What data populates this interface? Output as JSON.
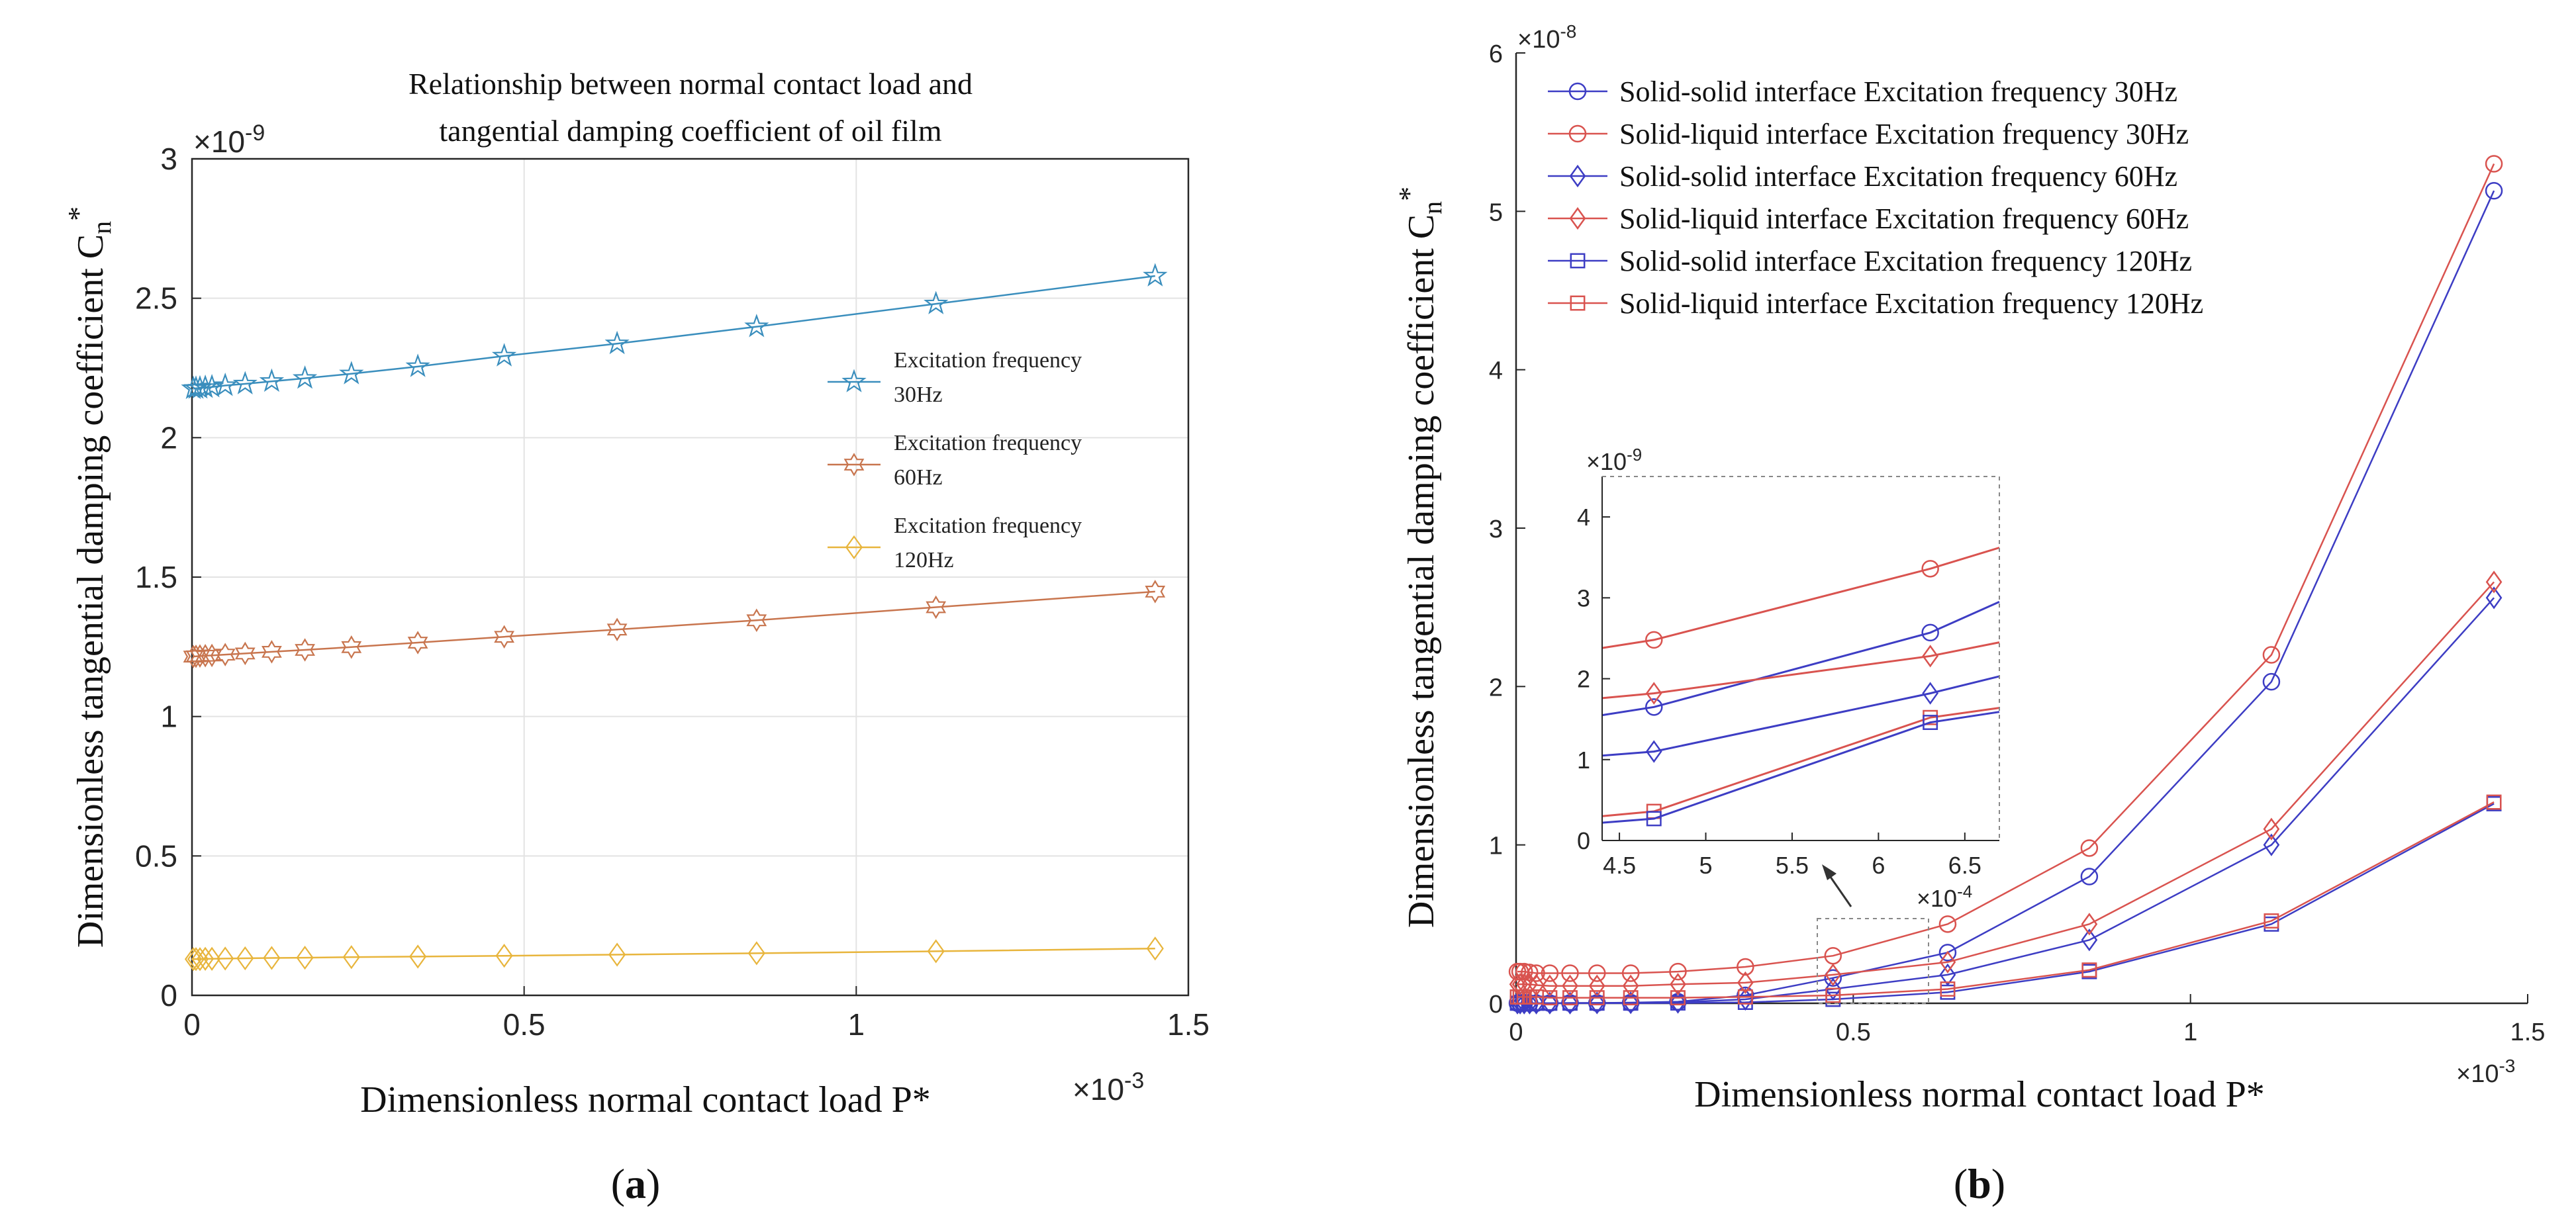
{
  "chart_data": [
    {
      "type": "line",
      "panel_label": "(a)",
      "title": "Relationship between normal contact load and tangential damping coefficient of oil film",
      "title_lines": [
        "Relationship between normal contact load and",
        "tangential damping coefficient of oil film"
      ],
      "xlabel": "Dimensionless normal contact load P*",
      "ylabel_main": "Dimensionless tangential damping coefficient C",
      "ylabel_sub": "n",
      "ylabel_sup": "*",
      "x_multiplier": "×10",
      "x_multiplier_exp": "-3",
      "y_multiplier": "×10",
      "y_multiplier_exp": "-9",
      "xlim": [
        0,
        1.5
      ],
      "ylim": [
        0,
        3
      ],
      "x_ticks": [
        0,
        0.5,
        1,
        1.5
      ],
      "y_ticks": [
        0,
        0.5,
        1,
        1.5,
        2,
        2.5,
        3
      ],
      "x_tick_labels": [
        "0",
        "0.5",
        "1",
        "1.5"
      ],
      "y_tick_labels": [
        "0",
        "0.5",
        "1",
        "1.5",
        "2",
        "2.5",
        "3"
      ],
      "grid": true,
      "legend_position": "right",
      "x": [
        0.002,
        0.006,
        0.012,
        0.02,
        0.03,
        0.05,
        0.08,
        0.12,
        0.17,
        0.24,
        0.34,
        0.47,
        0.64,
        0.85,
        1.12,
        1.45
      ],
      "series": [
        {
          "name": "Excitation frequency 30Hz",
          "legend_lines": [
            "Excitation     frequency",
            "30Hz"
          ],
          "color": "#3a8ebd",
          "marker": "star",
          "values": [
            2.176,
            2.177,
            2.178,
            2.18,
            2.182,
            2.187,
            2.193,
            2.202,
            2.213,
            2.229,
            2.255,
            2.293,
            2.337,
            2.398,
            2.48,
            2.58
          ]
        },
        {
          "name": "Excitation frequency 60Hz",
          "legend_lines": [
            "Excitation     frequency",
            "60Hz"
          ],
          "color": "#c8754e",
          "marker": "hexagram",
          "values": [
            1.215,
            1.216,
            1.217,
            1.218,
            1.219,
            1.222,
            1.226,
            1.232,
            1.239,
            1.249,
            1.265,
            1.286,
            1.312,
            1.345,
            1.392,
            1.448
          ]
        },
        {
          "name": "Excitation frequency 120Hz",
          "legend_lines": [
            "Excitation frequency",
            "120Hz"
          ],
          "color": "#e8b53c",
          "marker": "diamond",
          "values": [
            0.13,
            0.13,
            0.13,
            0.131,
            0.131,
            0.132,
            0.133,
            0.134,
            0.135,
            0.137,
            0.139,
            0.142,
            0.146,
            0.151,
            0.158,
            0.168
          ]
        }
      ]
    },
    {
      "type": "line",
      "panel_label": "(b)",
      "xlabel": "Dimensionless normal contact load P*",
      "ylabel_main": "Dimensionless tangential damping coefficient C",
      "ylabel_sub": "n",
      "ylabel_sup": "*",
      "x_multiplier": "×10",
      "x_multiplier_exp": "-3",
      "y_multiplier": "×10",
      "y_multiplier_exp": "-8",
      "xlim": [
        0,
        1.5
      ],
      "ylim": [
        0,
        6
      ],
      "x_ticks": [
        0,
        0.5,
        1,
        1.5
      ],
      "y_ticks": [
        0,
        1,
        2,
        3,
        4,
        5,
        6
      ],
      "x_tick_labels": [
        "0",
        "0.5",
        "1",
        "1.5"
      ],
      "y_tick_labels": [
        "0",
        "1",
        "2",
        "3",
        "4",
        "5",
        "6"
      ],
      "grid": false,
      "legend_position": "top-left",
      "x": [
        0.002,
        0.006,
        0.012,
        0.02,
        0.03,
        0.05,
        0.08,
        0.12,
        0.17,
        0.24,
        0.34,
        0.47,
        0.64,
        0.85,
        1.12,
        1.45
      ],
      "series": [
        {
          "name": "Solid-solid interface Excitation frequency 30Hz",
          "color": "#3d3dc4",
          "marker": "circle",
          "values": [
            0.001,
            0.001,
            0.001,
            0.001,
            0.001,
            0.001,
            0.002,
            0.002,
            0.004,
            0.01,
            0.05,
            0.16,
            0.32,
            0.8,
            2.03,
            5.13
          ]
        },
        {
          "name": "Solid-liquid interface Excitation frequency 30Hz",
          "color": "#d9534f",
          "marker": "circle",
          "values": [
            0.2,
            0.2,
            0.2,
            0.195,
            0.19,
            0.19,
            0.19,
            0.19,
            0.19,
            0.2,
            0.23,
            0.3,
            0.5,
            0.98,
            2.2,
            5.3
          ]
        },
        {
          "name": "Solid-solid interface Excitation frequency 60Hz",
          "color": "#3d3dc4",
          "marker": "diamond",
          "values": [
            0.001,
            0.001,
            0.001,
            0.001,
            0.001,
            0.001,
            0.001,
            0.002,
            0.003,
            0.006,
            0.025,
            0.09,
            0.18,
            0.4,
            1.0,
            2.56
          ]
        },
        {
          "name": "Solid-liquid interface Excitation frequency 60Hz",
          "color": "#d9534f",
          "marker": "diamond",
          "values": [
            0.12,
            0.12,
            0.12,
            0.12,
            0.115,
            0.11,
            0.11,
            0.11,
            0.11,
            0.12,
            0.13,
            0.18,
            0.26,
            0.5,
            1.1,
            2.66
          ]
        },
        {
          "name": "Solid-solid interface Excitation frequency 120Hz",
          "color": "#3d3dc4",
          "marker": "square",
          "values": [
            0.0005,
            0.0005,
            0.0005,
            0.0005,
            0.0005,
            0.0005,
            0.001,
            0.001,
            0.001,
            0.002,
            0.006,
            0.025,
            0.07,
            0.2,
            0.5,
            1.26
          ]
        },
        {
          "name": "Solid-liquid interface Excitation frequency 120Hz",
          "color": "#d9534f",
          "marker": "square",
          "values": [
            0.04,
            0.04,
            0.04,
            0.04,
            0.04,
            0.035,
            0.035,
            0.035,
            0.035,
            0.035,
            0.04,
            0.05,
            0.09,
            0.21,
            0.52,
            1.27
          ]
        }
      ],
      "inset": {
        "y_multiplier": "×10",
        "y_multiplier_exp": "-9",
        "x_multiplier": "×10",
        "x_multiplier_exp": "-4",
        "xlim": [
          4.4,
          6.7
        ],
        "ylim": [
          0,
          4.5
        ],
        "x_ticks": [
          4.5,
          5,
          5.5,
          6,
          6.5
        ],
        "y_ticks": [
          0,
          1,
          2,
          3,
          4
        ],
        "x_tick_labels": [
          "4.5",
          "5",
          "5.5",
          "6",
          "6.5"
        ],
        "y_tick_labels": [
          "0",
          "1",
          "2",
          "3",
          "4"
        ],
        "series": [
          {
            "color": "#d9534f",
            "marker": "circle",
            "x": [
              4.4,
              4.7,
              6.3,
              6.7
            ],
            "values": [
              2.38,
              2.48,
              3.36,
              3.62
            ]
          },
          {
            "color": "#3d3dc4",
            "marker": "circle",
            "x": [
              4.4,
              4.7,
              6.3,
              6.7
            ],
            "values": [
              1.55,
              1.65,
              2.57,
              2.95
            ]
          },
          {
            "color": "#d9534f",
            "marker": "diamond",
            "x": [
              4.4,
              4.7,
              6.3,
              6.7
            ],
            "values": [
              1.76,
              1.82,
              2.28,
              2.45
            ]
          },
          {
            "color": "#3d3dc4",
            "marker": "diamond",
            "x": [
              4.4,
              4.7,
              6.3,
              6.7
            ],
            "values": [
              1.05,
              1.1,
              1.82,
              2.03
            ]
          },
          {
            "color": "#d9534f",
            "marker": "square",
            "x": [
              4.4,
              4.7,
              6.3,
              6.7
            ],
            "values": [
              0.3,
              0.36,
              1.52,
              1.64
            ]
          },
          {
            "color": "#3d3dc4",
            "marker": "square",
            "x": [
              4.4,
              4.7,
              6.3,
              6.7
            ],
            "values": [
              0.22,
              0.27,
              1.46,
              1.59
            ]
          }
        ]
      }
    }
  ]
}
